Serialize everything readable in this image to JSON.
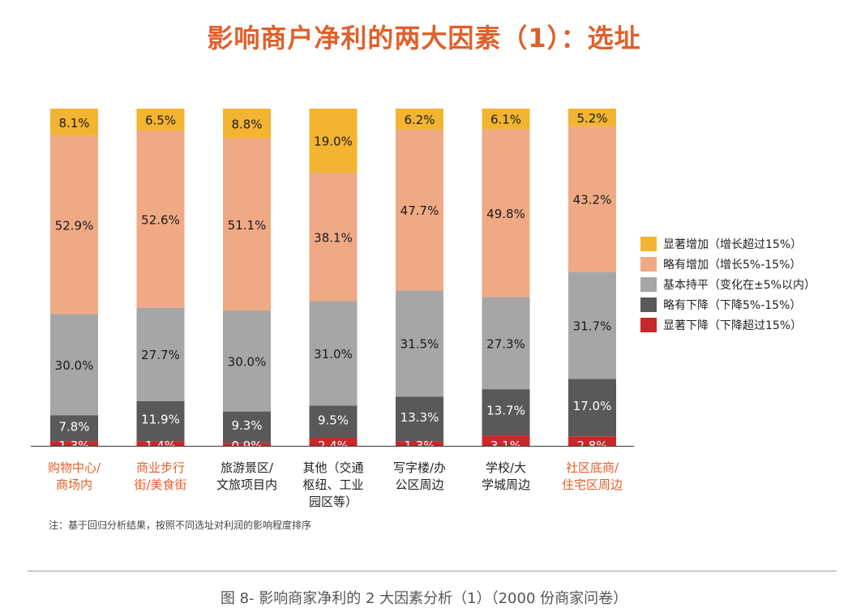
{
  "title": "影响商户净利的两大因素（1）：选址",
  "note": "注：基于回归分析结果，按照不同选址对利润的影响程度排序",
  "caption": "图 8- 影响商家净利的 2 大因素分析（1）（2000 份商家问卷）",
  "colors": {
    "title": "#e0602a",
    "category_highlight": "#e0602a",
    "category_normal": "#222222"
  },
  "chart_data": {
    "type": "bar",
    "stacked": true,
    "ylim": [
      0,
      100
    ],
    "unit": "%",
    "grid": false,
    "legend_position": "right",
    "categories": [
      {
        "line1": "购物中心/",
        "line2": "商场内",
        "line3": "",
        "highlight": true
      },
      {
        "line1": "商业步行",
        "line2": "街/美食街",
        "line3": "",
        "highlight": true
      },
      {
        "line1": "旅游景区/",
        "line2": "文旅项目内",
        "line3": "",
        "highlight": false
      },
      {
        "line1": "其他（交通",
        "line2": "枢纽、工业",
        "line3": "园区等）",
        "highlight": false
      },
      {
        "line1": "写字楼/办",
        "line2": "公区周边",
        "line3": "",
        "highlight": false
      },
      {
        "line1": "学校/大",
        "line2": "学城周边",
        "line3": "",
        "highlight": false
      },
      {
        "line1": "社区底商/",
        "line2": "住宅区周边",
        "line3": "",
        "highlight": true
      }
    ],
    "series": [
      {
        "name": "显著下降（下降超过15%）",
        "color": "#c8282a",
        "label_color": "#ffffff",
        "values": [
          1.3,
          1.4,
          0.9,
          2.4,
          1.3,
          3.1,
          2.8
        ],
        "labels": [
          "1.3%",
          "1.4%",
          "0.9%",
          "2.4%",
          "1.3%",
          "3.1%",
          "2.8%"
        ]
      },
      {
        "name": "略有下降（下降5%-15%）",
        "color": "#595959",
        "label_color": "#ffffff",
        "values": [
          7.8,
          11.9,
          9.3,
          9.5,
          13.3,
          13.7,
          17.0
        ],
        "labels": [
          "7.8%",
          "11.9%",
          "9.3%",
          "9.5%",
          "13.3%",
          "13.7%",
          "17.0%"
        ]
      },
      {
        "name": "基本持平（变化在±5%以内）",
        "color": "#a6a6a6",
        "label_color": "#1a1a1a",
        "values": [
          30.0,
          27.7,
          30.0,
          31.0,
          31.5,
          27.3,
          31.7
        ],
        "labels": [
          "30.0%",
          "27.7%",
          "30.0%",
          "31.0%",
          "31.5%",
          "27.3%",
          "31.7%"
        ]
      },
      {
        "name": "略有增加（增长5%-15%）",
        "color": "#efaa85",
        "label_color": "#1a1a1a",
        "values": [
          52.9,
          52.6,
          51.1,
          38.1,
          47.7,
          49.8,
          43.2
        ],
        "labels": [
          "52.9%",
          "52.6%",
          "51.1%",
          "38.1%",
          "47.7%",
          "49.8%",
          "43.2%"
        ]
      },
      {
        "name": "显著增加（增长超过15%）",
        "color": "#f3b431",
        "label_color": "#1a1a1a",
        "values": [
          8.1,
          6.5,
          8.8,
          19.0,
          6.2,
          6.1,
          5.2
        ],
        "labels": [
          "8.1%",
          "6.5%",
          "8.8%",
          "19.0%",
          "6.2%",
          "6.1%",
          "5.2%"
        ]
      }
    ],
    "legend": [
      {
        "label": "显著增加（增长超过15%）",
        "color": "#f3b431"
      },
      {
        "label": "略有增加（增长5%-15%）",
        "color": "#efaa85"
      },
      {
        "label": "基本持平（变化在±5%以内）",
        "color": "#a6a6a6"
      },
      {
        "label": "略有下降（下降5%-15%）",
        "color": "#595959"
      },
      {
        "label": "显著下降（下降超过15%）",
        "color": "#c8282a"
      }
    ]
  }
}
